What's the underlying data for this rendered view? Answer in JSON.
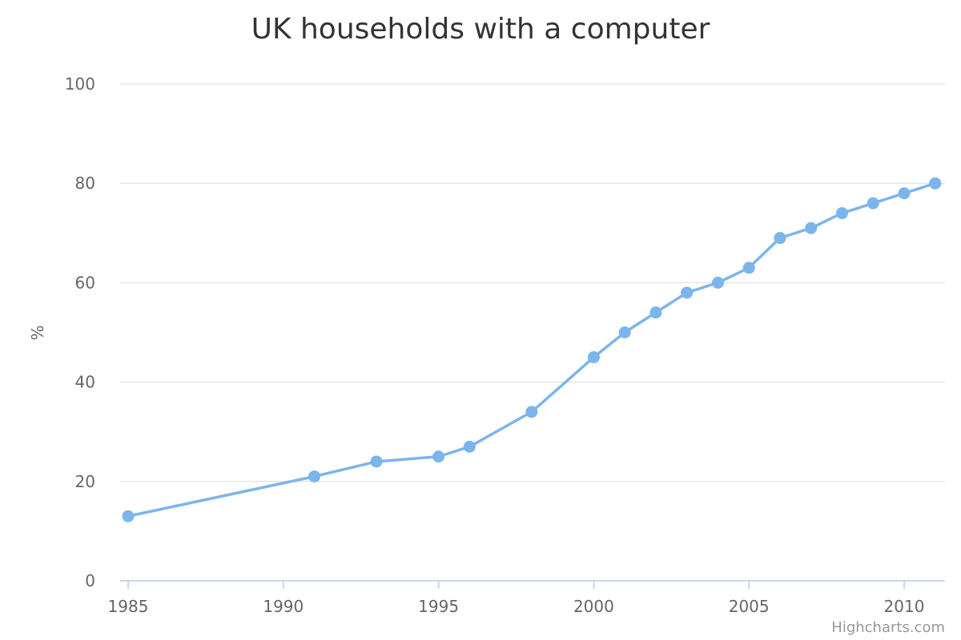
{
  "chart_data": {
    "type": "line",
    "title": "UK households with a computer",
    "xlabel": "",
    "ylabel": "%",
    "xlim": [
      1985,
      2011
    ],
    "ylim": [
      0,
      100
    ],
    "x_ticks": [
      "1985",
      "1990",
      "1995",
      "2000",
      "2005",
      "2010"
    ],
    "y_ticks": [
      "0",
      "20",
      "40",
      "60",
      "80",
      "100"
    ],
    "grid": true,
    "legend": "none",
    "series": [
      {
        "color": "#7cb5ec",
        "points": [
          {
            "x": 1985,
            "y": 13
          },
          {
            "x": 1991,
            "y": 21
          },
          {
            "x": 1993,
            "y": 24
          },
          {
            "x": 1995,
            "y": 25
          },
          {
            "x": 1996,
            "y": 27
          },
          {
            "x": 1998,
            "y": 34
          },
          {
            "x": 2000,
            "y": 45
          },
          {
            "x": 2001,
            "y": 50
          },
          {
            "x": 2002,
            "y": 54
          },
          {
            "x": 2003,
            "y": 58
          },
          {
            "x": 2004,
            "y": 60
          },
          {
            "x": 2005,
            "y": 63
          },
          {
            "x": 2006,
            "y": 69
          },
          {
            "x": 2007,
            "y": 71
          },
          {
            "x": 2008,
            "y": 74
          },
          {
            "x": 2009,
            "y": 76
          },
          {
            "x": 2010,
            "y": 78
          },
          {
            "x": 2011,
            "y": 80
          }
        ]
      }
    ]
  },
  "credits": "Highcharts.com",
  "colors": {
    "grid": "#e6e6e6",
    "axis_line": "#ccd6eb",
    "series": "#7cb5ec"
  }
}
